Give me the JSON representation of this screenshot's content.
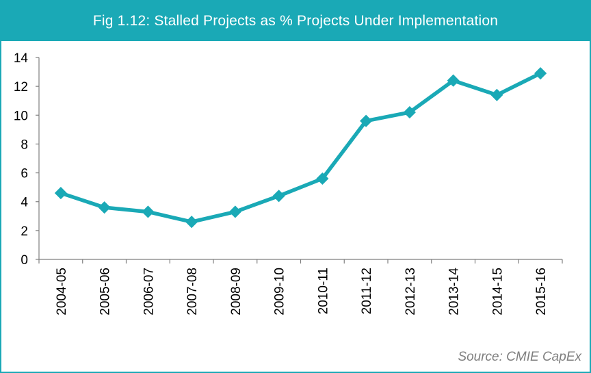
{
  "chart_data": {
    "type": "line",
    "title": "Fig 1.12: Stalled Projects as % Projects Under Implementation",
    "categories": [
      "2004-05",
      "2005-06",
      "2006-07",
      "2007-08",
      "2008-09",
      "2009-10",
      "2010-11",
      "2011-12",
      "2012-13",
      "2013-14",
      "2014-15",
      "2015-16"
    ],
    "series": [
      {
        "name": "Stalled projects %",
        "values": [
          4.6,
          3.6,
          3.3,
          2.6,
          3.3,
          4.4,
          5.6,
          9.6,
          10.2,
          12.4,
          11.4,
          12.9
        ],
        "color": "#1aa9b6"
      }
    ],
    "ylim": [
      0,
      14
    ],
    "yticks": [
      "0",
      "2",
      "4",
      "6",
      "8",
      "10",
      "12",
      "14"
    ],
    "xlabel": "",
    "ylabel": "",
    "grid": false,
    "legend": "none",
    "source": "Source: CMIE CapEx"
  },
  "colors": {
    "accent": "#1aa9b6",
    "source_text": "#7f7f7f"
  }
}
